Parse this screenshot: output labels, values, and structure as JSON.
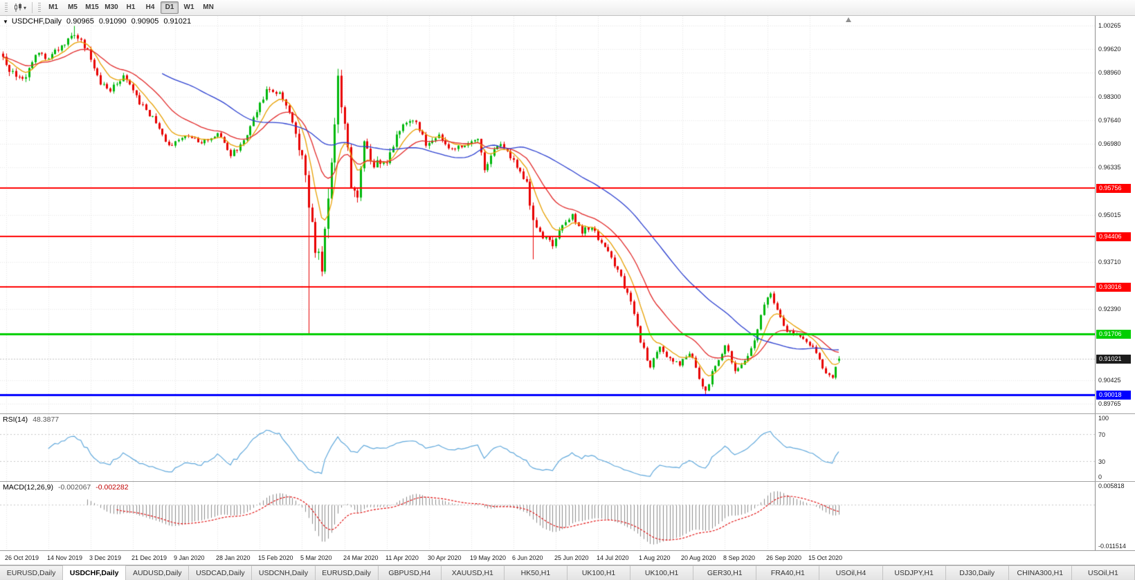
{
  "toolbar": {
    "caret": "▾",
    "timeframes": [
      {
        "label": "M1",
        "active": false
      },
      {
        "label": "M5",
        "active": false
      },
      {
        "label": "M15",
        "active": false
      },
      {
        "label": "M30",
        "active": false
      },
      {
        "label": "H1",
        "active": false
      },
      {
        "label": "H4",
        "active": false
      },
      {
        "label": "D1",
        "active": true
      },
      {
        "label": "W1",
        "active": false
      },
      {
        "label": "MN",
        "active": false
      }
    ]
  },
  "chart": {
    "header": {
      "collapse_arrow": "▼",
      "symbol": "USDCHF,Daily",
      "open": "0.90965",
      "high": "0.91090",
      "low": "0.90905",
      "close": "0.91021"
    },
    "price_axis": {
      "labels": [
        "1.00265",
        "0.99620",
        "0.98960",
        "0.98300",
        "0.97640",
        "0.96980",
        "0.96335",
        "0.95015",
        "0.93710",
        "0.92390",
        "0.90425",
        "0.89765"
      ],
      "ylim": [
        0.895,
        1.0054
      ]
    },
    "hlines": [
      {
        "price": 0.95756,
        "label": "0.95756",
        "color": "#FF0000",
        "width": 2
      },
      {
        "price": 0.94406,
        "label": "0.94406",
        "color": "#FF0000",
        "width": 2
      },
      {
        "price": 0.93016,
        "label": "0.93016",
        "color": "#FF0000",
        "width": 2
      },
      {
        "price": 0.91706,
        "label": "0.91706",
        "color": "#00CE00",
        "width": 3
      },
      {
        "price": 0.90018,
        "label": "0.90018",
        "color": "#0000FF",
        "width": 3
      }
    ],
    "current_price": {
      "value": 0.91021,
      "label": "0.91021",
      "badge_bg": "#1C1C1C"
    },
    "colors": {
      "background": "#FFFFFF",
      "grid": "#E6E6E6",
      "up": "#00B80C",
      "down": "#E80000",
      "bid_line": "#C4C4C4",
      "axis_text": "#1A1A1A"
    }
  },
  "chart_data": {
    "type": "candlestick",
    "symbol": "USDCHF",
    "period": "Daily",
    "bars": 258,
    "bar_spacing": 4.7,
    "x_offset": 4,
    "shift_bar": 260,
    "seed": 7,
    "anchors": [
      [
        0,
        0.9945,
        0.002
      ],
      [
        3,
        0.989,
        0.0026
      ],
      [
        6,
        0.9872,
        0.0024
      ],
      [
        10,
        0.9952,
        0.0018
      ],
      [
        14,
        0.9932,
        0.0018
      ],
      [
        18,
        0.9972,
        0.0018
      ],
      [
        22,
        1.0002,
        0.002
      ],
      [
        26,
        0.9958,
        0.0018
      ],
      [
        30,
        0.9868,
        0.0018
      ],
      [
        33,
        0.985,
        0.0016
      ],
      [
        37,
        0.9888,
        0.0016
      ],
      [
        42,
        0.9812,
        0.0016
      ],
      [
        46,
        0.9772,
        0.0016
      ],
      [
        51,
        0.9692,
        0.0014
      ],
      [
        56,
        0.9724,
        0.0013
      ],
      [
        61,
        0.97,
        0.0012
      ],
      [
        66,
        0.9728,
        0.0012
      ],
      [
        70,
        0.9666,
        0.0014
      ],
      [
        74,
        0.9706,
        0.0014
      ],
      [
        78,
        0.9788,
        0.0016
      ],
      [
        81,
        0.985,
        0.0018
      ],
      [
        85,
        0.9836,
        0.0018
      ],
      [
        89,
        0.9762,
        0.0026
      ],
      [
        92,
        0.966,
        0.0036
      ],
      [
        94,
        0.953,
        0.0066
      ],
      [
        96,
        0.94,
        0.0055
      ],
      [
        98,
        0.9365,
        0.0055
      ],
      [
        100,
        0.955,
        0.006
      ],
      [
        103,
        0.9872,
        0.005
      ],
      [
        105,
        0.976,
        0.0046
      ],
      [
        107,
        0.9585,
        0.004
      ],
      [
        109,
        0.9565,
        0.0036
      ],
      [
        111,
        0.9698,
        0.003
      ],
      [
        114,
        0.9642,
        0.0026
      ],
      [
        118,
        0.9655,
        0.0024
      ],
      [
        122,
        0.9738,
        0.0022
      ],
      [
        126,
        0.9768,
        0.002
      ],
      [
        130,
        0.9702,
        0.002
      ],
      [
        134,
        0.9724,
        0.0018
      ],
      [
        138,
        0.9682,
        0.0018
      ],
      [
        142,
        0.97,
        0.0016
      ],
      [
        146,
        0.9718,
        0.0016
      ],
      [
        148,
        0.9628,
        0.0018
      ],
      [
        152,
        0.9698,
        0.0016
      ],
      [
        155,
        0.968,
        0.0015
      ],
      [
        158,
        0.9632,
        0.0016
      ],
      [
        161,
        0.959,
        0.002
      ],
      [
        163,
        0.9482,
        0.0026
      ],
      [
        166,
        0.9442,
        0.0022
      ],
      [
        169,
        0.9422,
        0.002
      ],
      [
        172,
        0.9468,
        0.0018
      ],
      [
        175,
        0.9498,
        0.0016
      ],
      [
        178,
        0.9456,
        0.0016
      ],
      [
        181,
        0.947,
        0.0015
      ],
      [
        184,
        0.9422,
        0.0015
      ],
      [
        187,
        0.9382,
        0.0016
      ],
      [
        190,
        0.9332,
        0.0018
      ],
      [
        193,
        0.9252,
        0.002
      ],
      [
        196,
        0.9152,
        0.0022
      ],
      [
        199,
        0.9082,
        0.002
      ],
      [
        202,
        0.9128,
        0.0018
      ],
      [
        205,
        0.91,
        0.0016
      ],
      [
        208,
        0.9082,
        0.0016
      ],
      [
        211,
        0.912,
        0.0016
      ],
      [
        214,
        0.9052,
        0.0018
      ],
      [
        216,
        0.9012,
        0.0016
      ],
      [
        219,
        0.9088,
        0.0016
      ],
      [
        222,
        0.9138,
        0.0016
      ],
      [
        225,
        0.9072,
        0.0015
      ],
      [
        228,
        0.9092,
        0.0015
      ],
      [
        231,
        0.915,
        0.0016
      ],
      [
        234,
        0.9248,
        0.002
      ],
      [
        236,
        0.9288,
        0.0018
      ],
      [
        238,
        0.9232,
        0.0018
      ],
      [
        241,
        0.9182,
        0.0015
      ],
      [
        244,
        0.9172,
        0.0013
      ],
      [
        247,
        0.915,
        0.0013
      ],
      [
        250,
        0.912,
        0.0013
      ],
      [
        253,
        0.9062,
        0.0015
      ],
      [
        255,
        0.9048,
        0.0013
      ],
      [
        257,
        0.91021,
        0.0012
      ]
    ],
    "wick_overrides": [
      {
        "bar": 22,
        "high": 1.0026
      },
      {
        "bar": 94,
        "low": 0.9172
      },
      {
        "bar": 103,
        "high": 0.9904
      },
      {
        "bar": 163,
        "low": 0.9378
      },
      {
        "bar": 216,
        "low": 0.8998
      }
    ],
    "last_bar": {
      "open": 0.90965,
      "high": 0.9109,
      "low": 0.90905,
      "close": 0.91021
    },
    "moving_averages": [
      {
        "type": "ema",
        "period": 8,
        "color": "#E8A000"
      },
      {
        "type": "ema",
        "period": 21,
        "color": "#E22828"
      },
      {
        "type": "sma",
        "period": 50,
        "color": "#2B3FD0"
      }
    ],
    "indicators": [
      "RSI(14)",
      "MACD(12,26,9)"
    ],
    "x_ticks": [
      {
        "bar": 1,
        "label": "26 Oct 2019"
      },
      {
        "bar": 14,
        "label": "14 Nov 2019"
      },
      {
        "bar": 27,
        "label": "3 Dec 2019"
      },
      {
        "bar": 40,
        "label": "21 Dec 2019"
      },
      {
        "bar": 53,
        "label": "9 Jan 2020"
      },
      {
        "bar": 66,
        "label": "28 Jan 2020"
      },
      {
        "bar": 79,
        "label": "15 Feb 2020"
      },
      {
        "bar": 92,
        "label": "5 Mar 2020"
      },
      {
        "bar": 105,
        "label": "24 Mar 2020"
      },
      {
        "bar": 118,
        "label": "11 Apr 2020"
      },
      {
        "bar": 131,
        "label": "30 Apr 2020"
      },
      {
        "bar": 144,
        "label": "19 May 2020"
      },
      {
        "bar": 157,
        "label": "6 Jun 2020"
      },
      {
        "bar": 170,
        "label": "25 Jun 2020"
      },
      {
        "bar": 183,
        "label": "14 Jul 2020"
      },
      {
        "bar": 196,
        "label": "1 Aug 2020"
      },
      {
        "bar": 209,
        "label": "20 Aug 2020"
      },
      {
        "bar": 222,
        "label": "8 Sep 2020"
      },
      {
        "bar": 235,
        "label": "26 Sep 2020"
      },
      {
        "bar": 248,
        "label": "15 Oct 2020"
      }
    ]
  },
  "rsi": {
    "name": "RSI(14)",
    "period": 14,
    "value": "48.3877",
    "line_color": "#5FA8DC",
    "levels": [
      70,
      30
    ],
    "axis_labels": [
      "100",
      "70",
      "30",
      "0"
    ],
    "ylim": [
      0,
      100
    ]
  },
  "macd": {
    "name": "MACD(12,26,9)",
    "fast": 12,
    "slow": 26,
    "signal_period": 9,
    "value_main": "-0.002067",
    "value_signal": "-0.002282",
    "hist_color": "#8C8C8C",
    "signal_color": "#E00000",
    "axis_labels": [
      "0.005818",
      "-0.011514"
    ],
    "ylim": [
      -0.011514,
      0.005818
    ]
  },
  "tabs": {
    "items": [
      {
        "label": "EURUSD,Daily",
        "active": false
      },
      {
        "label": "USDCHF,Daily",
        "active": true
      },
      {
        "label": "AUDUSD,Daily",
        "active": false
      },
      {
        "label": "USDCAD,Daily",
        "active": false
      },
      {
        "label": "USDCNH,Daily",
        "active": false
      },
      {
        "label": "EURUSD,Daily",
        "active": false
      },
      {
        "label": "GBPUSD,H4",
        "active": false
      },
      {
        "label": "XAUUSD,H1",
        "active": false
      },
      {
        "label": "HK50,H1",
        "active": false
      },
      {
        "label": "UK100,H1",
        "active": false
      },
      {
        "label": "UK100,H1",
        "active": false
      },
      {
        "label": "GER30,H1",
        "active": false
      },
      {
        "label": "FRA40,H1",
        "active": false
      },
      {
        "label": "USOil,H4",
        "active": false
      },
      {
        "label": "USDJPY,H1",
        "active": false
      },
      {
        "label": "DJ30,Daily",
        "active": false
      },
      {
        "label": "CHINA300,H1",
        "active": false
      },
      {
        "label": "USOil,H1",
        "active": false
      }
    ]
  }
}
